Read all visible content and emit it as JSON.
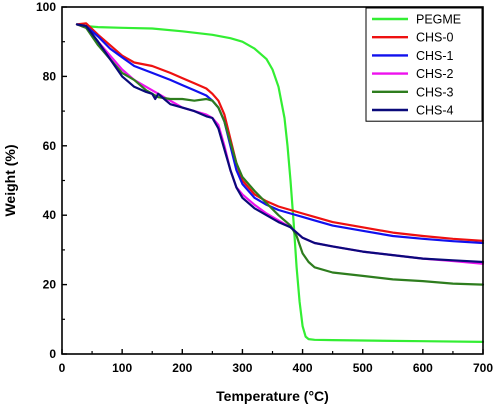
{
  "chart_data": {
    "type": "line",
    "xlabel": "Temperature (°C)",
    "ylabel": "Weight (%)",
    "xlim": [
      0,
      700
    ],
    "ylim": [
      0,
      100
    ],
    "xticks": [
      0,
      100,
      200,
      300,
      400,
      500,
      600,
      700
    ],
    "yticks": [
      0,
      20,
      40,
      60,
      80,
      100
    ],
    "grid": false,
    "legend_position": "top-right",
    "series": [
      {
        "name": "PEGME",
        "color": "#33ee33",
        "x": [
          25,
          40,
          60,
          100,
          150,
          200,
          250,
          280,
          300,
          320,
          340,
          350,
          360,
          370,
          375,
          380,
          385,
          390,
          395,
          400,
          405,
          410,
          420,
          450,
          500,
          600,
          700
        ],
        "y": [
          95,
          94.5,
          94.2,
          94,
          93.8,
          93,
          92,
          91,
          90,
          88,
          85,
          82,
          77,
          68,
          60,
          50,
          38,
          25,
          15,
          8,
          5,
          4.3,
          4.1,
          4,
          3.9,
          3.7,
          3.5
        ]
      },
      {
        "name": "CHS-0",
        "color": "#ee1111",
        "x": [
          25,
          40,
          60,
          80,
          100,
          120,
          150,
          180,
          200,
          220,
          240,
          250,
          260,
          270,
          280,
          290,
          300,
          320,
          340,
          360,
          380,
          400,
          420,
          450,
          500,
          550,
          600,
          650,
          700
        ],
        "y": [
          95,
          95.3,
          92,
          89,
          86,
          84,
          83,
          81,
          79.5,
          78,
          76.5,
          75,
          73,
          69,
          62,
          55,
          50,
          46,
          44,
          42.5,
          41.5,
          40.5,
          39.5,
          38,
          36.5,
          35,
          34,
          33.2,
          32.6
        ]
      },
      {
        "name": "CHS-1",
        "color": "#1111ee",
        "x": [
          25,
          40,
          60,
          80,
          100,
          120,
          150,
          180,
          200,
          220,
          240,
          250,
          260,
          270,
          280,
          290,
          300,
          320,
          340,
          360,
          380,
          400,
          420,
          450,
          500,
          550,
          600,
          650,
          700
        ],
        "y": [
          95,
          94.5,
          91.5,
          88,
          85.5,
          83,
          81,
          79,
          77.5,
          76,
          74.5,
          73,
          71,
          67,
          60,
          53,
          49,
          45,
          43,
          41.5,
          40.5,
          39.5,
          38.5,
          37,
          35.5,
          34,
          33.2,
          32.5,
          32
        ]
      },
      {
        "name": "CHS-2",
        "color": "#ee11ee",
        "x": [
          25,
          40,
          60,
          80,
          100,
          120,
          150,
          180,
          200,
          220,
          240,
          250,
          260,
          270,
          280,
          290,
          300,
          320,
          340,
          360,
          380,
          390,
          400,
          420,
          450,
          500,
          550,
          600,
          650,
          700
        ],
        "y": [
          95,
          94,
          90,
          86,
          82,
          79,
          76,
          73,
          71,
          70,
          69,
          68,
          66,
          60,
          53,
          48,
          46,
          43,
          40.5,
          38.5,
          36.5,
          35,
          33.5,
          32,
          31,
          29.5,
          28.5,
          27.5,
          26.8,
          26
        ]
      },
      {
        "name": "CHS-3",
        "color": "#2e7d1e",
        "x": [
          25,
          40,
          60,
          80,
          100,
          120,
          140,
          160,
          180,
          200,
          220,
          240,
          250,
          260,
          270,
          280,
          290,
          300,
          320,
          340,
          360,
          380,
          390,
          400,
          410,
          420,
          450,
          500,
          550,
          600,
          650,
          700
        ],
        "y": [
          95,
          94,
          89,
          85,
          81,
          79,
          76,
          74,
          73.5,
          73.5,
          73,
          73.5,
          73,
          71,
          67,
          61,
          55,
          51,
          47,
          43.5,
          40,
          37,
          34,
          29,
          26.5,
          25,
          23.5,
          22.5,
          21.5,
          21,
          20.3,
          20
        ]
      },
      {
        "name": "CHS-4",
        "color": "#0a0a7a",
        "x": [
          25,
          40,
          60,
          80,
          100,
          120,
          140,
          150,
          155,
          160,
          170,
          180,
          200,
          220,
          240,
          250,
          260,
          270,
          280,
          290,
          300,
          320,
          340,
          360,
          380,
          390,
          400,
          420,
          450,
          500,
          550,
          600,
          650,
          700
        ],
        "y": [
          95,
          94.5,
          90,
          85,
          80,
          77,
          75.5,
          75,
          73.5,
          75,
          73.5,
          72,
          71,
          70,
          68.5,
          68,
          65,
          59,
          53,
          48,
          45,
          42,
          40,
          38,
          36.5,
          35,
          33.5,
          32,
          31,
          29.5,
          28.5,
          27.5,
          27,
          26.5
        ]
      }
    ]
  }
}
